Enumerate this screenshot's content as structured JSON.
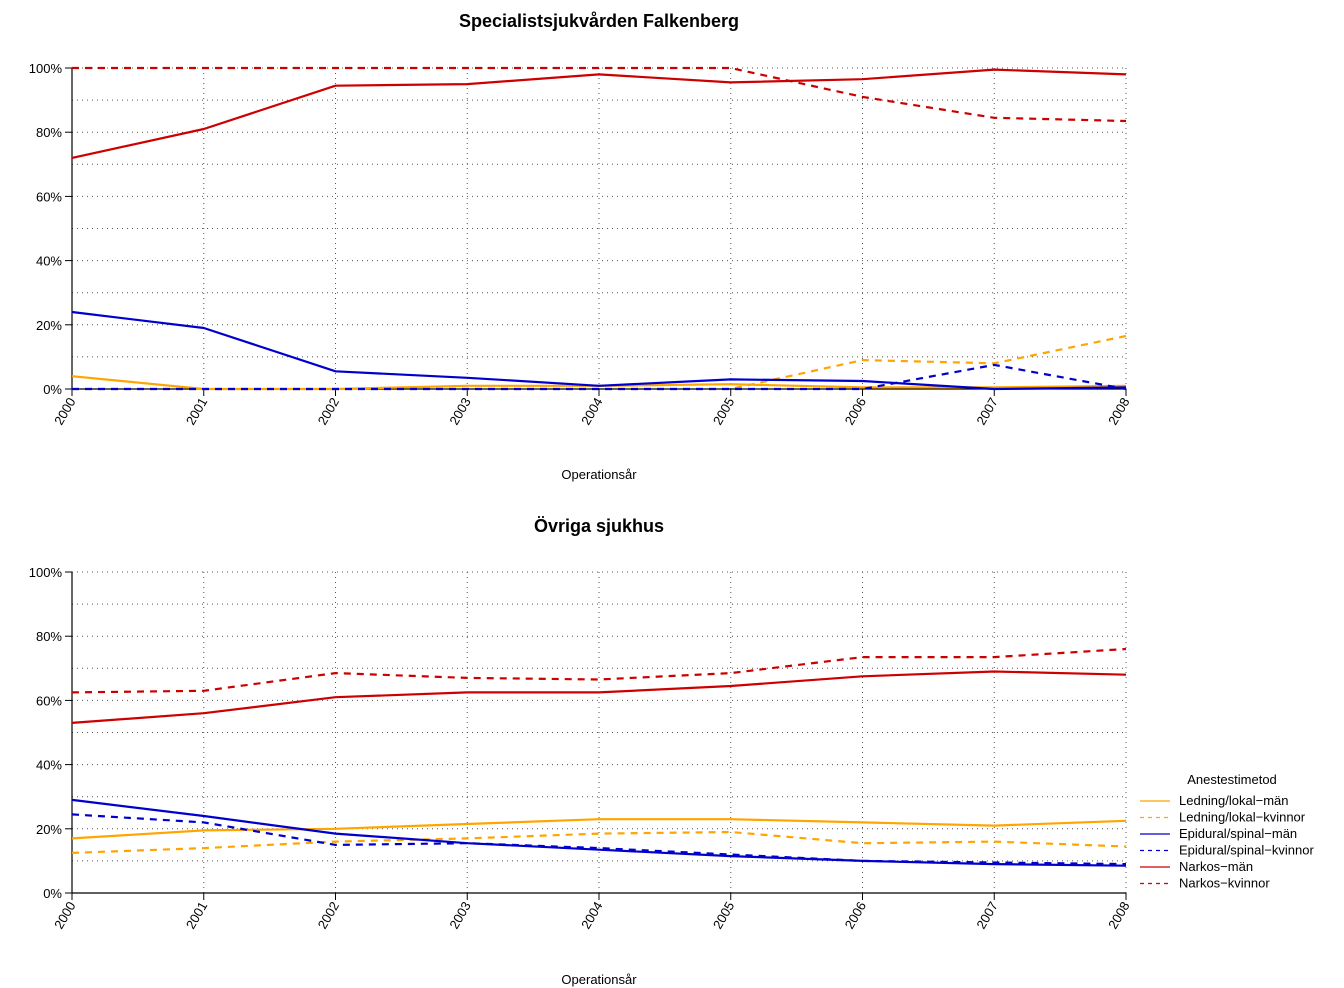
{
  "chart_data": [
    {
      "type": "line",
      "title": "Specialistsjukvården Falkenberg",
      "xlabel": "Operationsår",
      "ylabel": "",
      "x": [
        "2000",
        "2001",
        "2002",
        "2003",
        "2004",
        "2005",
        "2006",
        "2007",
        "2008"
      ],
      "y_ticks": [
        "0%",
        "20%",
        "40%",
        "60%",
        "80%",
        "100%"
      ],
      "ylim": [
        0,
        100
      ],
      "grid": true,
      "series": [
        {
          "name": "Ledning/lokal−män",
          "color": "#FFA500",
          "dash": "solid",
          "values": [
            4,
            0,
            0,
            1,
            1,
            1.5,
            0.5,
            0.5,
            1
          ]
        },
        {
          "name": "Ledning/lokal−kvinnor",
          "color": "#FFA500",
          "dash": "dashed",
          "values": [
            0,
            0,
            0,
            0,
            0,
            0,
            9,
            8,
            16.5
          ]
        },
        {
          "name": "Epidural/spinal−män",
          "color": "#0000CD",
          "dash": "solid",
          "values": [
            24,
            19,
            5.5,
            3.5,
            1,
            3,
            2.5,
            0,
            0.5
          ]
        },
        {
          "name": "Epidural/spinal−kvinnor",
          "color": "#0000CD",
          "dash": "dashed",
          "values": [
            0,
            0,
            0,
            0,
            0,
            0,
            0,
            7.5,
            0
          ]
        },
        {
          "name": "Narkos−män",
          "color": "#CD0000",
          "dash": "solid",
          "values": [
            72,
            81,
            94.5,
            95,
            98,
            95.5,
            96.5,
            99.5,
            98
          ]
        },
        {
          "name": "Narkos−kvinnor",
          "color": "#CD0000",
          "dash": "dashed",
          "values": [
            100,
            100,
            100,
            100,
            100,
            100,
            91,
            84.5,
            83.5
          ]
        }
      ]
    },
    {
      "type": "line",
      "title": "Övriga sjukhus",
      "xlabel": "Operationsår",
      "ylabel": "",
      "x": [
        "2000",
        "2001",
        "2002",
        "2003",
        "2004",
        "2005",
        "2006",
        "2007",
        "2008"
      ],
      "y_ticks": [
        "0%",
        "20%",
        "40%",
        "60%",
        "80%",
        "100%"
      ],
      "ylim": [
        0,
        100
      ],
      "grid": true,
      "legend": {
        "title": "Anestestimetod",
        "placement": "right"
      },
      "series": [
        {
          "name": "Ledning/lokal−män",
          "color": "#FFA500",
          "dash": "solid",
          "values": [
            17,
            19.5,
            20,
            21.5,
            23,
            23,
            22,
            21,
            22.5
          ]
        },
        {
          "name": "Ledning/lokal−kvinnor",
          "color": "#FFA500",
          "dash": "dashed",
          "values": [
            12.5,
            14,
            16,
            17,
            18.5,
            19,
            15.5,
            16,
            14.5
          ]
        },
        {
          "name": "Epidural/spinal−män",
          "color": "#0000CD",
          "dash": "solid",
          "values": [
            29,
            24,
            18.5,
            15.5,
            13.5,
            11.5,
            10,
            9,
            8.5
          ]
        },
        {
          "name": "Epidural/spinal−kvinnor",
          "color": "#0000CD",
          "dash": "dashed",
          "values": [
            24.5,
            22,
            15,
            15.5,
            14,
            12,
            10,
            9.5,
            9
          ]
        },
        {
          "name": "Narkos−män",
          "color": "#CD0000",
          "dash": "solid",
          "values": [
            53,
            56,
            61,
            62.5,
            62.5,
            64.5,
            67.5,
            69,
            68
          ]
        },
        {
          "name": "Narkos−kvinnor",
          "color": "#CD0000",
          "dash": "dashed",
          "values": [
            62.5,
            63,
            68.5,
            67,
            66.5,
            68.5,
            73.5,
            73.5,
            76
          ]
        }
      ]
    }
  ]
}
